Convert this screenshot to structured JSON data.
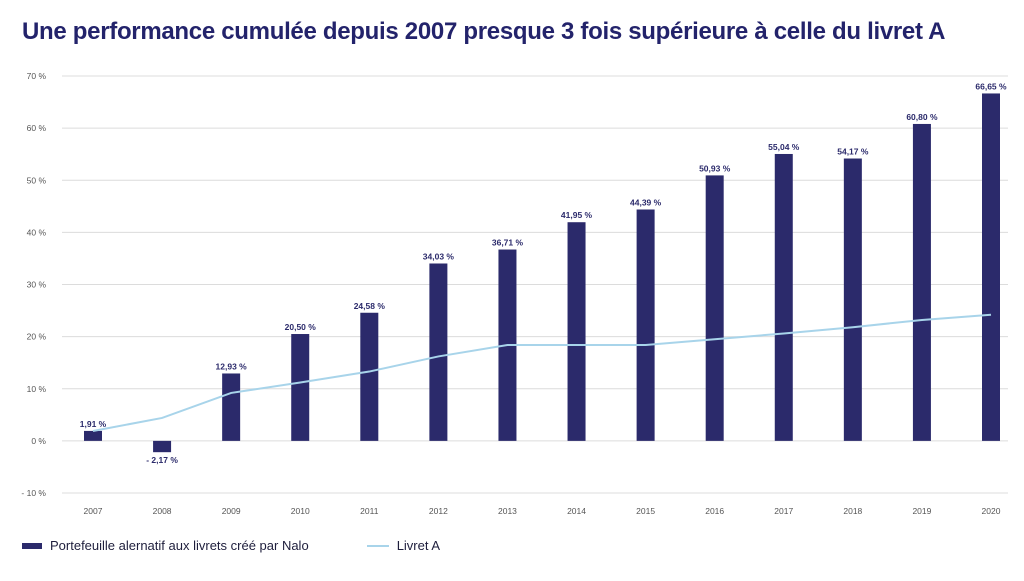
{
  "title": "Une performance cumulée depuis 2007 presque 3 fois supérieure à celle du livret A",
  "colors": {
    "bar": "#2b2a6b",
    "line": "#a8d4ea",
    "grid": "#dcdcdc",
    "text": "#555555",
    "label": "#2b2a6b"
  },
  "chart_data": {
    "type": "bar",
    "categories": [
      "2007",
      "2008",
      "2009",
      "2010",
      "2011",
      "2012",
      "2013",
      "2014",
      "2015",
      "2016",
      "2017",
      "2018",
      "2019",
      "2020"
    ],
    "series": [
      {
        "name": "Portefeuille alernatif aux livrets créé par Nalo",
        "type": "bar",
        "values": [
          1.91,
          -2.17,
          12.93,
          20.5,
          24.58,
          34.03,
          36.71,
          41.95,
          44.39,
          50.93,
          55.04,
          54.17,
          60.8,
          66.65
        ],
        "labels": [
          "1,91 %",
          "- 2,17 %",
          "12,93 %",
          "20,50 %",
          "24,58 %",
          "34,03 %",
          "36,71 %",
          "41,95 %",
          "44,39 %",
          "50,93 %",
          "55,04 %",
          "54,17 %",
          "60,80 %",
          "66,65 %"
        ]
      },
      {
        "name": "Livret A",
        "type": "line",
        "values": [
          1.9,
          4.4,
          9.2,
          11.2,
          13.3,
          16.2,
          18.4,
          18.4,
          18.4,
          19.5,
          20.6,
          21.8,
          23.2,
          24.2
        ]
      }
    ],
    "ylim": [
      -10,
      70
    ],
    "yticks": [
      -10,
      0,
      10,
      20,
      30,
      40,
      50,
      60,
      70
    ],
    "ytick_labels": [
      "- 10 %",
      "0 %",
      "10 %",
      "20 %",
      "30 %",
      "40 %",
      "50 %",
      "60 %",
      "70 %"
    ],
    "grid": true,
    "legend_position": "bottom-left"
  }
}
